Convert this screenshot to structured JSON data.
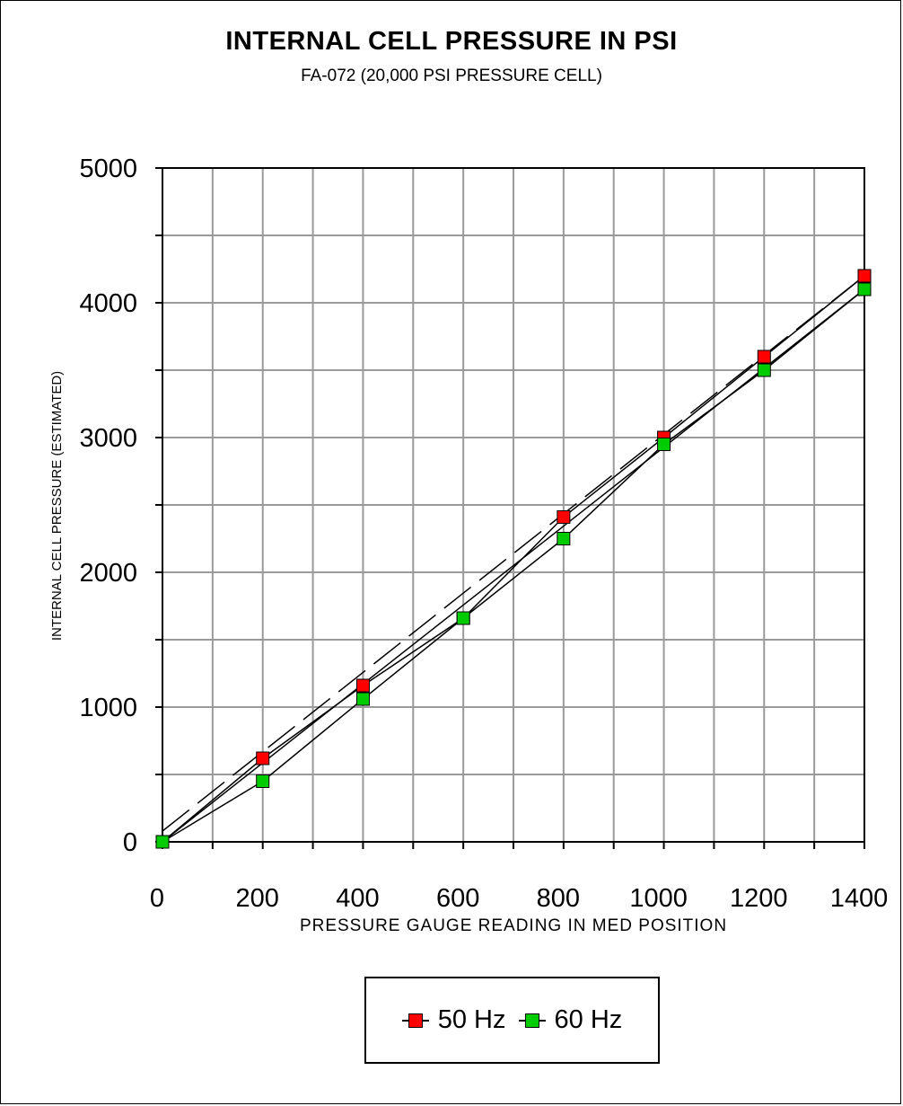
{
  "chart_data": {
    "type": "line",
    "title": "INTERNAL CELL PRESSURE IN PSI",
    "subtitle": "FA-072 (20,000 PSI PRESSURE CELL)",
    "xlabel": "PRESSURE GAUGE READING IN MED POSITION",
    "ylabel": "INTERNAL CELL PRESSURE (ESTIMATED)",
    "x": [
      0,
      200,
      400,
      600,
      800,
      1000,
      1200,
      1400
    ],
    "xlim": [
      0,
      1400
    ],
    "ylim": [
      0,
      5000
    ],
    "x_ticks": [
      0,
      200,
      400,
      600,
      800,
      1000,
      1200,
      1400
    ],
    "y_ticks": [
      0,
      1000,
      2000,
      3000,
      4000,
      5000
    ],
    "grid": true,
    "legend_position": "bottom-center",
    "series": [
      {
        "name": "50 Hz",
        "color": "#ff0000",
        "values": [
          0,
          620,
          1160,
          1660,
          2410,
          3000,
          3600,
          4200
        ]
      },
      {
        "name": "60 Hz",
        "color": "#00cc00",
        "values": [
          0,
          450,
          1060,
          1660,
          2250,
          2950,
          3500,
          4100
        ]
      }
    ],
    "trendlines": [
      {
        "of": "50 Hz",
        "style": "dashed",
        "y_at_xmin": 80,
        "y_at_xmax": 4200
      },
      {
        "of": "60 Hz",
        "style": "solid",
        "y_at_xmin": 0,
        "y_at_xmax": 4100
      }
    ]
  }
}
